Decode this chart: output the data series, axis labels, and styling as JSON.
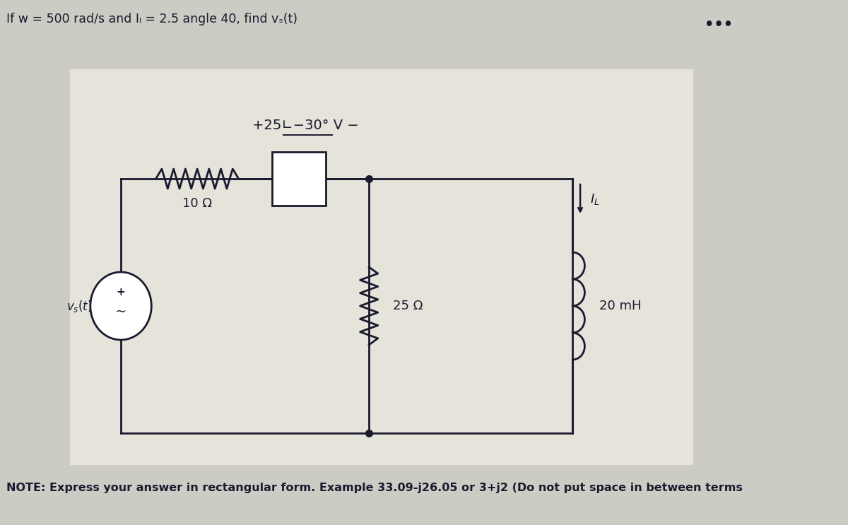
{
  "title": "If w = 500 rad/s and Iₗ = 2.5 angle 40, find vₛ(t)",
  "note": "NOTE: Express your answer in rectangular form. Example 33.09-j26.05 or 3+j2 (Do not put space in between terms",
  "bg_color": "#cccbc4",
  "circuit_bg": "#e6e3db",
  "voltage_source_label": "$v_s(t)$",
  "resistor1_label": "10 Ω",
  "resistor2_label": "25 Ω",
  "inductor_label": "20 mH",
  "voltage_label": "+25∟−30° V −",
  "current_label": "$I_L$",
  "dots_label": "•••"
}
